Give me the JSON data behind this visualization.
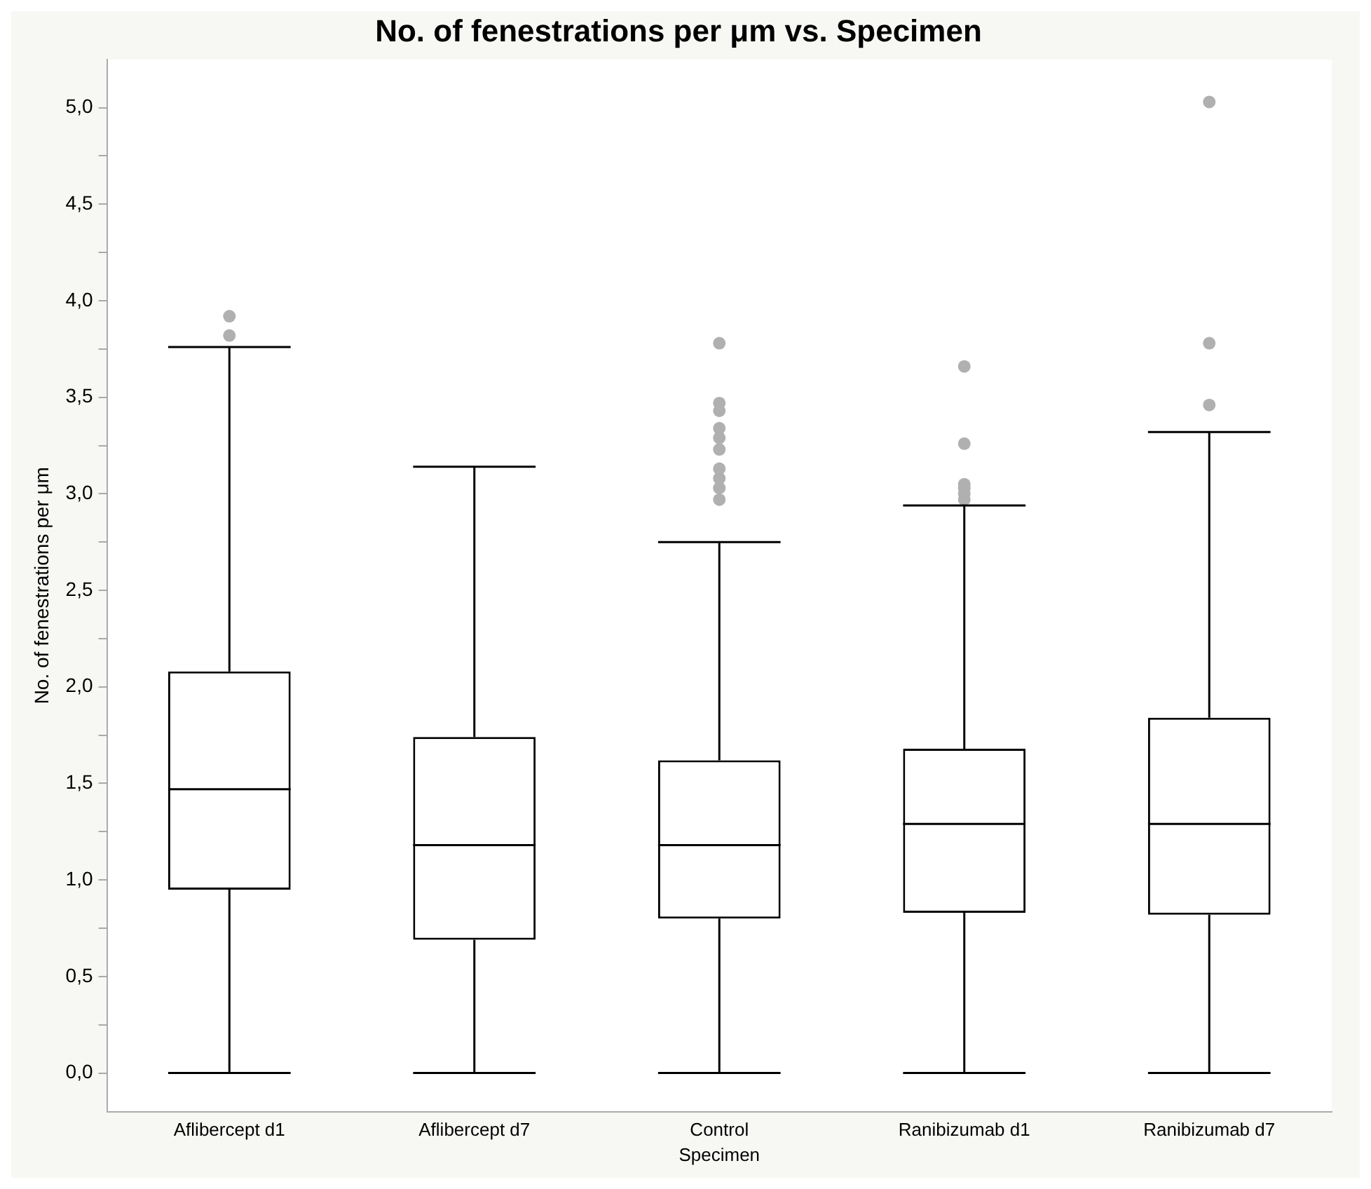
{
  "chart_data": {
    "type": "box",
    "title": "No. of fenestrations per μm vs. Specimen",
    "xlabel": "Specimen",
    "ylabel": "No. of fenestrations per μm",
    "categories": [
      "Aflibercept d1",
      "Aflibercept d7",
      "Control",
      "Ranibizumab d1",
      "Ranibizumab d7"
    ],
    "boxes": [
      {
        "low": 0,
        "q1": 0.95,
        "median": 1.47,
        "q3": 2.08,
        "high": 3.76,
        "outliers": [
          3.82,
          3.92
        ]
      },
      {
        "low": 0,
        "q1": 0.69,
        "median": 1.18,
        "q3": 1.74,
        "high": 3.14
      },
      {
        "low": 0,
        "q1": 0.8,
        "median": 1.18,
        "q3": 1.62,
        "high": 2.75,
        "outliers": [
          2.97,
          3.03,
          3.08,
          3.13,
          3.23,
          3.29,
          3.34,
          3.43,
          3.47,
          3.78
        ]
      },
      {
        "low": 0,
        "q1": 0.83,
        "median": 1.29,
        "q3": 1.68,
        "high": 2.94,
        "outliers": [
          2.97,
          3.0,
          3.03,
          3.05,
          3.26,
          3.66
        ]
      },
      {
        "low": 0,
        "q1": 0.82,
        "median": 1.29,
        "q3": 1.84,
        "high": 3.32,
        "outliers": [
          3.46,
          3.78,
          5.03
        ]
      }
    ],
    "color": "#000000",
    "ylim": [
      -0.2,
      5.25
    ],
    "yticks": [
      {
        "value": 0,
        "label": "0,0"
      },
      {
        "value": 0.25,
        "label": null
      },
      {
        "value": 0.5,
        "label": "0,5"
      },
      {
        "value": 0.75,
        "label": null
      },
      {
        "value": 1,
        "label": "1,0"
      },
      {
        "value": 1.25,
        "label": null
      },
      {
        "value": 1.5,
        "label": "1,5"
      },
      {
        "value": 1.75,
        "label": null
      },
      {
        "value": 2,
        "label": "2,0"
      },
      {
        "value": 2.25,
        "label": null
      },
      {
        "value": 2.5,
        "label": "2,5"
      },
      {
        "value": 2.75,
        "label": null
      },
      {
        "value": 3,
        "label": "3,0"
      },
      {
        "value": 3.25,
        "label": null
      },
      {
        "value": 3.5,
        "label": "3,5"
      },
      {
        "value": 3.75,
        "label": null
      },
      {
        "value": 4,
        "label": "4,0"
      },
      {
        "value": 4.25,
        "label": null
      },
      {
        "value": 4.5,
        "label": "4,5"
      },
      {
        "value": 4.75,
        "label": null
      },
      {
        "value": 5,
        "label": "5,0"
      }
    ],
    "grid": false,
    "legend": false
  }
}
